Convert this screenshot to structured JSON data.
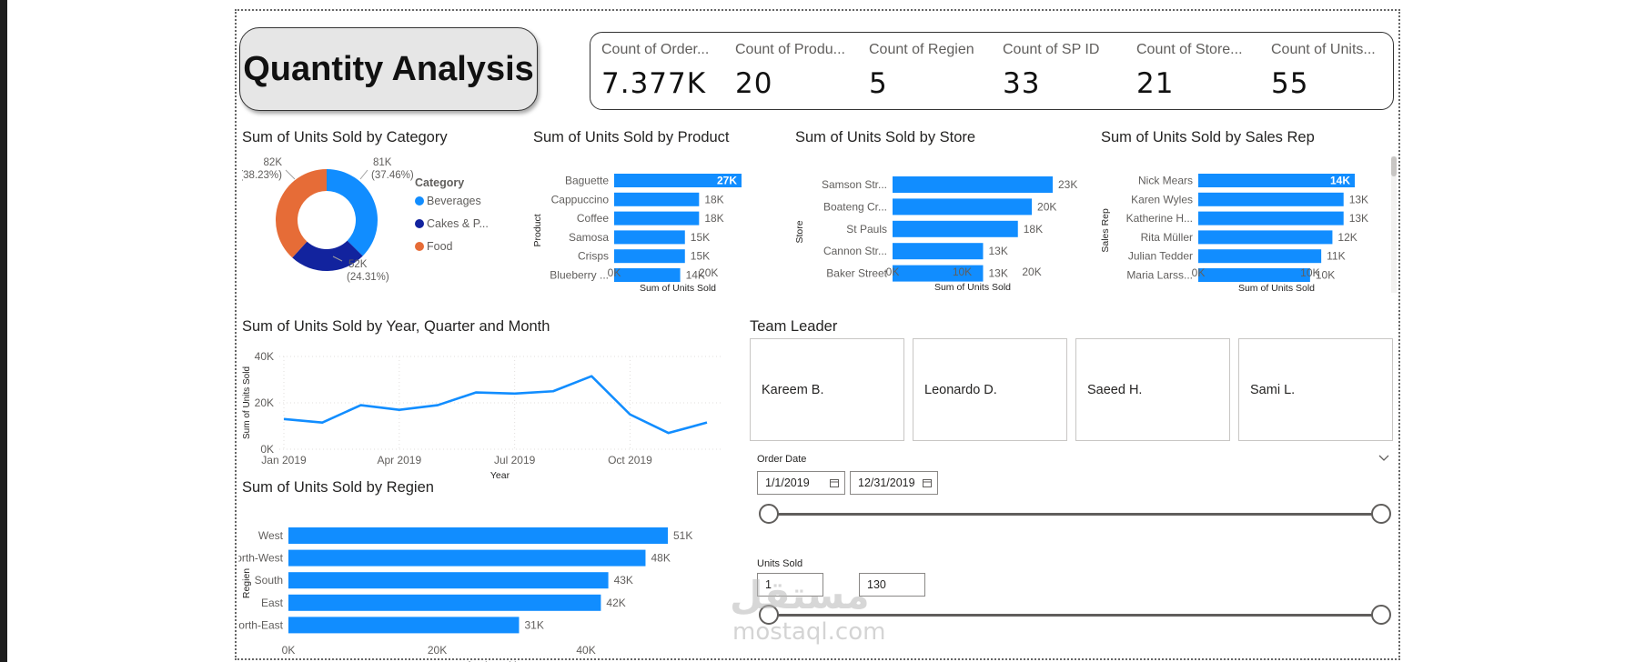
{
  "page": {
    "title": "Quantity Analysis"
  },
  "kpis": [
    {
      "label": "Count of Order...",
      "value": "7.377K"
    },
    {
      "label": "Count of Produ...",
      "value": "20"
    },
    {
      "label": "Count of Regien",
      "value": "5"
    },
    {
      "label": "Count of SP ID",
      "value": "33"
    },
    {
      "label": "Count of Store...",
      "value": "21"
    },
    {
      "label": "Count of Units...",
      "value": "55"
    }
  ],
  "colors": {
    "bar": "#118dff",
    "beverages": "#118dff",
    "cakes": "#12239e",
    "food": "#e66c37",
    "line": "#118dff"
  },
  "category_chart": {
    "title": "Sum of Units Sold by Category",
    "legend_title": "Category",
    "slices": [
      {
        "name": "Beverages",
        "value": "81K",
        "pct": "(37.46%)",
        "share": 37.46,
        "color": "#118dff"
      },
      {
        "name": "Cakes & P...",
        "value": "52K",
        "pct": "(24.31%)",
        "share": 24.31,
        "color": "#12239e"
      },
      {
        "name": "Food",
        "value": "82K",
        "pct": "(38.23%)",
        "share": 38.23,
        "color": "#e66c37"
      }
    ]
  },
  "chart_data": [
    {
      "type": "pie",
      "title": "Sum of Units Sold by Category",
      "legend_title": "Category",
      "categories": [
        "Beverages",
        "Cakes & P...",
        "Food"
      ],
      "values": [
        81,
        52,
        82
      ],
      "labels": [
        "81K (37.46%)",
        "52K (24.31%)",
        "82K (38.23%)"
      ]
    },
    {
      "type": "bar",
      "title": "Sum of Units Sold by Product",
      "xlabel": "Sum of Units Sold",
      "ylabel": "Product",
      "categories": [
        "Baguette",
        "Cappuccino",
        "Coffee",
        "Samosa",
        "Crisps",
        "Blueberry ..."
      ],
      "values": [
        27,
        18,
        18,
        15,
        15,
        14
      ],
      "value_labels": [
        "27K",
        "18K",
        "18K",
        "15K",
        "15K",
        "14K"
      ],
      "xticks": [
        "0K",
        "20K"
      ],
      "xlim": [
        0,
        27
      ]
    },
    {
      "type": "bar",
      "title": "Sum of Units Sold by Store",
      "xlabel": "Sum of Units Sold",
      "ylabel": "Store",
      "categories": [
        "Samson Str...",
        "Boateng Cr...",
        "St Pauls",
        "Cannon Str...",
        "Baker Street"
      ],
      "values": [
        23,
        20,
        18,
        13,
        13
      ],
      "value_labels": [
        "23K",
        "20K",
        "18K",
        "13K",
        "13K"
      ],
      "xticks": [
        "0K",
        "10K",
        "20K"
      ],
      "xlim": [
        0,
        23
      ]
    },
    {
      "type": "bar",
      "title": "Sum of Units Sold by Sales Rep",
      "xlabel": "Sum of Units Sold",
      "ylabel": "Sales Rep",
      "categories": [
        "Nick Mears",
        "Karen Wyles",
        "Katherine H...",
        "Rita Müller",
        "Julian Tedder",
        "Maria Larss..."
      ],
      "values": [
        14,
        13,
        13,
        12,
        11,
        10
      ],
      "value_labels": [
        "14K",
        "13K",
        "13K",
        "12K",
        "11K",
        "10K"
      ],
      "xticks": [
        "0K",
        "10K"
      ],
      "xlim": [
        0,
        14
      ]
    },
    {
      "type": "line",
      "title": "Sum of Units Sold by Year, Quarter and Month",
      "xlabel": "Year",
      "ylabel": "Sum of Units Sold",
      "yticks": [
        "0K",
        "20K",
        "40K"
      ],
      "ylim": [
        0,
        40
      ],
      "xticks": [
        "Jan 2019",
        "Apr 2019",
        "Jul 2019",
        "Oct 2019"
      ],
      "values": [
        13,
        11.5,
        19,
        17,
        19,
        24.5,
        24,
        25,
        31.5,
        15,
        7,
        11.5
      ]
    },
    {
      "type": "bar",
      "title": "Sum of Units Sold by Regien",
      "xlabel": "Sum of Units Sold",
      "ylabel": "Regien",
      "categories": [
        "West",
        "North-West",
        "South",
        "East",
        "North-East"
      ],
      "values": [
        51,
        48,
        43,
        42,
        31
      ],
      "value_labels": [
        "51K",
        "48K",
        "43K",
        "42K",
        "31K"
      ],
      "xticks": [
        "0K",
        "20K",
        "40K"
      ],
      "xlim": [
        0,
        51
      ]
    }
  ],
  "team_leader": {
    "title": "Team Leader",
    "items": [
      "Kareem B.",
      "Leonardo D.",
      "Saeed H.",
      "Sami L."
    ]
  },
  "order_date": {
    "label": "Order Date",
    "start": "1/1/2019",
    "end": "12/31/2019"
  },
  "units_sold": {
    "label": "Units Sold",
    "min": "1",
    "max": "130"
  },
  "watermark": {
    "arabic": "مستقل",
    "latin": "mostaql.com"
  }
}
